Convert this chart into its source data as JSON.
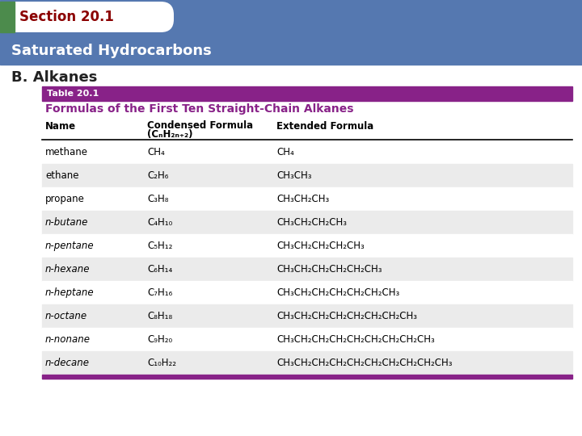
{
  "section_text": "Section 20.1",
  "section_tab_color": "#4C8B4C",
  "section_text_color": "#8B0000",
  "subtitle_text": "Saturated Hydrocarbons",
  "subtitle_bg": "#5578B0",
  "subtitle_text_color": "#FFFFFF",
  "heading_text": "B. Alkanes",
  "heading_color": "#222222",
  "table_label": "Table 20.1",
  "table_label_bg": "#882288",
  "table_label_color": "#FFFFFF",
  "table_title": "Formulas of the First Ten Straight-Chain Alkanes",
  "table_title_color": "#882288",
  "col_header_name": "Name",
  "col_header_cf1": "Condensed Formula",
  "col_header_cf2": "(CₙH₂ₙ₊₂)",
  "col_header_ef": "Extended Formula",
  "rows": [
    [
      "methane",
      "CH₄",
      "CH₄"
    ],
    [
      "ethane",
      "C₂H₆",
      "CH₃CH₃"
    ],
    [
      "propane",
      "C₃H₈",
      "CH₃CH₂CH₃"
    ],
    [
      "n-butane",
      "C₄H₁₀",
      "CH₃CH₂CH₂CH₃"
    ],
    [
      "n-pentane",
      "C₅H₁₂",
      "CH₃CH₂CH₂CH₂CH₃"
    ],
    [
      "n-hexane",
      "C₆H₁₄",
      "CH₃CH₂CH₂CH₂CH₂CH₃"
    ],
    [
      "n-heptane",
      "C₇H₁₆",
      "CH₃CH₂CH₂CH₂CH₂CH₂CH₃"
    ],
    [
      "n-octane",
      "C₈H₁₈",
      "CH₃CH₂CH₂CH₂CH₂CH₂CH₂CH₃"
    ],
    [
      "n-nonane",
      "C₉H₂₀",
      "CH₃CH₂CH₂CH₂CH₂CH₂CH₂CH₂CH₃"
    ],
    [
      "n-decane",
      "C₁₀H₂₂",
      "CH₃CH₂CH₂CH₂CH₂CH₂CH₂CH₂CH₂CH₃"
    ]
  ],
  "row_alt_color": "#EBEBEB",
  "row_plain_color": "#FFFFFF",
  "table_border_color": "#882288",
  "bg_color": "#FFFFFF"
}
